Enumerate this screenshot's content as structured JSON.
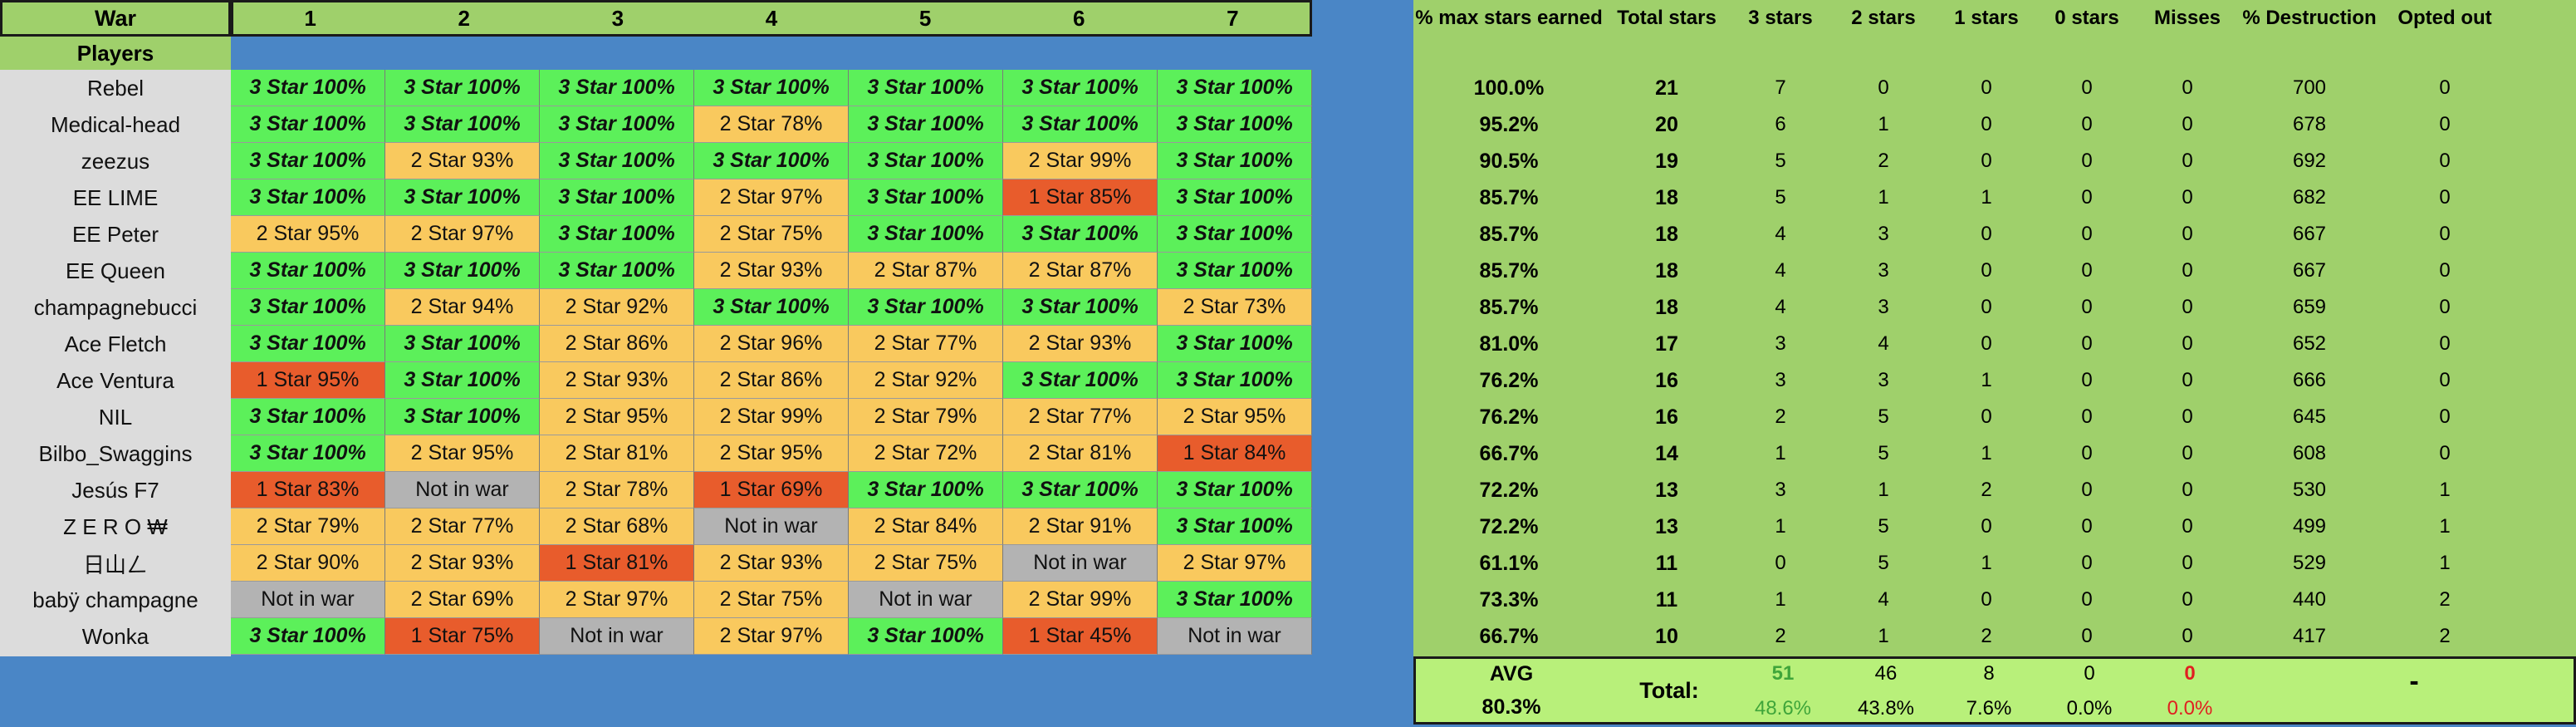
{
  "header": {
    "war_label": "War",
    "players_label": "Players",
    "wars": [
      "1",
      "2",
      "3",
      "4",
      "5",
      "6",
      "7"
    ]
  },
  "stats_headers": [
    "% max stars earned",
    "Total stars",
    "3 stars",
    "2 stars",
    "1 stars",
    "0 stars",
    "Misses",
    "% Destruction",
    "Opted out"
  ],
  "players": [
    {
      "name": "Rebel",
      "cells": [
        [
          "3",
          "3 Star 100%"
        ],
        [
          "3",
          "3 Star 100%"
        ],
        [
          "3",
          "3 Star 100%"
        ],
        [
          "3",
          "3 Star 100%"
        ],
        [
          "3",
          "3 Star 100%"
        ],
        [
          "3",
          "3 Star 100%"
        ],
        [
          "3",
          "3 Star 100%"
        ]
      ],
      "stats": [
        "100.0%",
        "21",
        "7",
        "0",
        "0",
        "0",
        "0",
        "700",
        "0"
      ]
    },
    {
      "name": "Medical-head",
      "cells": [
        [
          "3",
          "3 Star 100%"
        ],
        [
          "3",
          "3 Star 100%"
        ],
        [
          "3",
          "3 Star 100%"
        ],
        [
          "2",
          "2 Star 78%"
        ],
        [
          "3",
          "3 Star 100%"
        ],
        [
          "3",
          "3 Star 100%"
        ],
        [
          "3",
          "3 Star 100%"
        ]
      ],
      "stats": [
        "95.2%",
        "20",
        "6",
        "1",
        "0",
        "0",
        "0",
        "678",
        "0"
      ]
    },
    {
      "name": "zeezus",
      "cells": [
        [
          "3",
          "3 Star 100%"
        ],
        [
          "2",
          "2 Star 93%"
        ],
        [
          "3",
          "3 Star 100%"
        ],
        [
          "3",
          "3 Star 100%"
        ],
        [
          "3",
          "3 Star 100%"
        ],
        [
          "2",
          "2 Star 99%"
        ],
        [
          "3",
          "3 Star 100%"
        ]
      ],
      "stats": [
        "90.5%",
        "19",
        "5",
        "2",
        "0",
        "0",
        "0",
        "692",
        "0"
      ]
    },
    {
      "name": "EE LIME",
      "cells": [
        [
          "3",
          "3 Star 100%"
        ],
        [
          "3",
          "3 Star 100%"
        ],
        [
          "3",
          "3 Star 100%"
        ],
        [
          "2",
          "2 Star 97%"
        ],
        [
          "3",
          "3 Star 100%"
        ],
        [
          "1",
          "1 Star 85%"
        ],
        [
          "3",
          "3 Star 100%"
        ]
      ],
      "stats": [
        "85.7%",
        "18",
        "5",
        "1",
        "1",
        "0",
        "0",
        "682",
        "0"
      ]
    },
    {
      "name": "EE Peter",
      "cells": [
        [
          "2",
          "2 Star 95%"
        ],
        [
          "2",
          "2 Star 97%"
        ],
        [
          "3",
          "3 Star 100%"
        ],
        [
          "2",
          "2 Star 75%"
        ],
        [
          "3",
          "3 Star 100%"
        ],
        [
          "3",
          "3 Star 100%"
        ],
        [
          "3",
          "3 Star 100%"
        ]
      ],
      "stats": [
        "85.7%",
        "18",
        "4",
        "3",
        "0",
        "0",
        "0",
        "667",
        "0"
      ]
    },
    {
      "name": "EE Queen",
      "cells": [
        [
          "3",
          "3 Star 100%"
        ],
        [
          "3",
          "3 Star 100%"
        ],
        [
          "3",
          "3 Star 100%"
        ],
        [
          "2",
          "2 Star 93%"
        ],
        [
          "2",
          "2 Star 87%"
        ],
        [
          "2",
          "2 Star 87%"
        ],
        [
          "3",
          "3 Star 100%"
        ]
      ],
      "stats": [
        "85.7%",
        "18",
        "4",
        "3",
        "0",
        "0",
        "0",
        "667",
        "0"
      ]
    },
    {
      "name": "champagnebucci",
      "cells": [
        [
          "3",
          "3 Star 100%"
        ],
        [
          "2",
          "2 Star 94%"
        ],
        [
          "2",
          "2 Star 92%"
        ],
        [
          "3",
          "3 Star 100%"
        ],
        [
          "3",
          "3 Star 100%"
        ],
        [
          "3",
          "3 Star 100%"
        ],
        [
          "2",
          "2 Star 73%"
        ]
      ],
      "stats": [
        "85.7%",
        "18",
        "4",
        "3",
        "0",
        "0",
        "0",
        "659",
        "0"
      ]
    },
    {
      "name": "Ace Fletch",
      "cells": [
        [
          "3",
          "3 Star 100%"
        ],
        [
          "3",
          "3 Star 100%"
        ],
        [
          "2",
          "2 Star 86%"
        ],
        [
          "2",
          "2 Star 96%"
        ],
        [
          "2",
          "2 Star 77%"
        ],
        [
          "2",
          "2 Star 93%"
        ],
        [
          "3",
          "3 Star 100%"
        ]
      ],
      "stats": [
        "81.0%",
        "17",
        "3",
        "4",
        "0",
        "0",
        "0",
        "652",
        "0"
      ]
    },
    {
      "name": "Ace Ventura",
      "cells": [
        [
          "1",
          "1 Star 95%"
        ],
        [
          "3",
          "3 Star 100%"
        ],
        [
          "2",
          "2 Star 93%"
        ],
        [
          "2",
          "2 Star 86%"
        ],
        [
          "2",
          "2 Star 92%"
        ],
        [
          "3",
          "3 Star 100%"
        ],
        [
          "3",
          "3 Star 100%"
        ]
      ],
      "stats": [
        "76.2%",
        "16",
        "3",
        "3",
        "1",
        "0",
        "0",
        "666",
        "0"
      ]
    },
    {
      "name": "NIL",
      "cells": [
        [
          "3",
          "3 Star 100%"
        ],
        [
          "3",
          "3 Star 100%"
        ],
        [
          "2",
          "2 Star 95%"
        ],
        [
          "2",
          "2 Star 99%"
        ],
        [
          "2",
          "2 Star 79%"
        ],
        [
          "2",
          "2 Star 77%"
        ],
        [
          "2",
          "2 Star 95%"
        ]
      ],
      "stats": [
        "76.2%",
        "16",
        "2",
        "5",
        "0",
        "0",
        "0",
        "645",
        "0"
      ]
    },
    {
      "name": "Bilbo_Swaggins",
      "cells": [
        [
          "3",
          "3 Star 100%"
        ],
        [
          "2",
          "2 Star 95%"
        ],
        [
          "2",
          "2 Star 81%"
        ],
        [
          "2",
          "2 Star 95%"
        ],
        [
          "2",
          "2 Star 72%"
        ],
        [
          "2",
          "2 Star 81%"
        ],
        [
          "1",
          "1 Star 84%"
        ]
      ],
      "stats": [
        "66.7%",
        "14",
        "1",
        "5",
        "1",
        "0",
        "0",
        "608",
        "0"
      ]
    },
    {
      "name": "Jesús F7",
      "cells": [
        [
          "1",
          "1 Star 83%"
        ],
        [
          "n",
          "Not in war"
        ],
        [
          "2",
          "2 Star 78%"
        ],
        [
          "1",
          "1 Star 69%"
        ],
        [
          "3",
          "3 Star 100%"
        ],
        [
          "3",
          "3 Star 100%"
        ],
        [
          "3",
          "3 Star 100%"
        ]
      ],
      "stats": [
        "72.2%",
        "13",
        "3",
        "1",
        "2",
        "0",
        "0",
        "530",
        "1"
      ]
    },
    {
      "name": "Z E R O ₩",
      "cells": [
        [
          "2",
          "2 Star 79%"
        ],
        [
          "2",
          "2 Star 77%"
        ],
        [
          "2",
          "2 Star 68%"
        ],
        [
          "n",
          "Not in war"
        ],
        [
          "2",
          "2 Star 84%"
        ],
        [
          "2",
          "2 Star 91%"
        ],
        [
          "3",
          "3 Star 100%"
        ]
      ],
      "stats": [
        "72.2%",
        "13",
        "1",
        "5",
        "0",
        "0",
        "0",
        "499",
        "1"
      ]
    },
    {
      "name": "日山ㄥ",
      "cells": [
        [
          "2",
          "2 Star 90%"
        ],
        [
          "2",
          "2 Star 93%"
        ],
        [
          "1",
          "1 Star 81%"
        ],
        [
          "2",
          "2 Star 93%"
        ],
        [
          "2",
          "2 Star 75%"
        ],
        [
          "n",
          "Not in war"
        ],
        [
          "2",
          "2 Star 97%"
        ]
      ],
      "stats": [
        "61.1%",
        "11",
        "0",
        "5",
        "1",
        "0",
        "0",
        "529",
        "1"
      ]
    },
    {
      "name": "babÿ champagne",
      "cells": [
        [
          "n",
          "Not in war"
        ],
        [
          "2",
          "2 Star 69%"
        ],
        [
          "2",
          "2 Star 97%"
        ],
        [
          "2",
          "2 Star 75%"
        ],
        [
          "n",
          "Not in war"
        ],
        [
          "2",
          "2 Star 99%"
        ],
        [
          "3",
          "3 Star 100%"
        ]
      ],
      "stats": [
        "73.3%",
        "11",
        "1",
        "4",
        "0",
        "0",
        "0",
        "440",
        "2"
      ]
    },
    {
      "name": "Wonka",
      "cells": [
        [
          "3",
          "3 Star 100%"
        ],
        [
          "1",
          "1 Star 75%"
        ],
        [
          "n",
          "Not in war"
        ],
        [
          "2",
          "2 Star 97%"
        ],
        [
          "3",
          "3 Star 100%"
        ],
        [
          "1",
          "1 Star 45%"
        ],
        [
          "n",
          "Not in war"
        ]
      ],
      "stats": [
        "66.7%",
        "10",
        "2",
        "1",
        "2",
        "0",
        "0",
        "417",
        "2"
      ]
    }
  ],
  "footer": {
    "avg_label": "AVG",
    "avg_value": "80.3%",
    "total_label": "Total:",
    "three_stars": "51",
    "three_pct": "48.6%",
    "two_stars": "46",
    "two_pct": "43.8%",
    "one_stars": "8",
    "one_pct": "7.6%",
    "zero_stars": "0",
    "zero_pct": "0.0%",
    "misses": "0",
    "misses_pct": "0.0%",
    "dash": "-"
  }
}
